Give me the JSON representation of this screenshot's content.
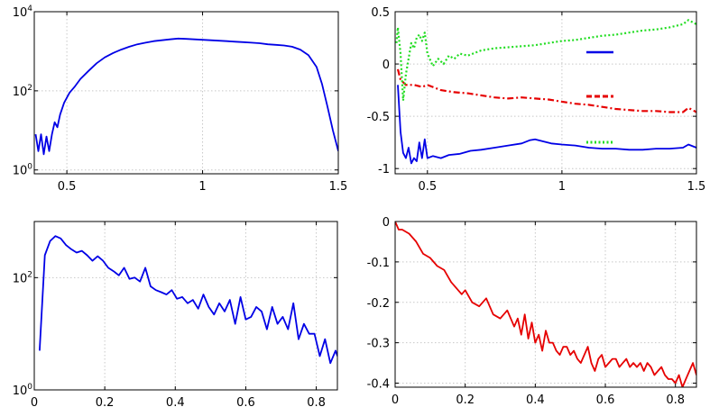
{
  "chart_data": [
    {
      "type": "line",
      "yscale": "log",
      "xlim": [
        0.38,
        1.5
      ],
      "ylim": [
        0.8,
        10000
      ],
      "xticks": [
        0.5,
        1,
        1.5
      ],
      "xticklabels": [
        "0.5",
        "1",
        "1.5"
      ],
      "yticks": [
        1,
        100,
        10000
      ],
      "yticklabels": [
        {
          "base": "10",
          "exp": "0"
        },
        {
          "base": "10",
          "exp": "2"
        },
        {
          "base": "10",
          "exp": "4"
        }
      ],
      "series": [
        {
          "color": "#0000e6",
          "style": "solid",
          "x": [
            0.385,
            0.395,
            0.405,
            0.415,
            0.425,
            0.435,
            0.445,
            0.455,
            0.465,
            0.475,
            0.49,
            0.51,
            0.53,
            0.55,
            0.58,
            0.61,
            0.64,
            0.67,
            0.7,
            0.73,
            0.76,
            0.79,
            0.82,
            0.85,
            0.88,
            0.91,
            0.94,
            0.97,
            1.0,
            1.03,
            1.06,
            1.09,
            1.12,
            1.15,
            1.18,
            1.21,
            1.24,
            1.27,
            1.3,
            1.33,
            1.36,
            1.39,
            1.42,
            1.44,
            1.46,
            1.48,
            1.5
          ],
          "y": [
            8,
            3,
            8,
            2.5,
            7,
            3,
            8,
            16,
            12,
            25,
            50,
            90,
            130,
            200,
            320,
            500,
            700,
            900,
            1100,
            1300,
            1500,
            1650,
            1800,
            1900,
            2000,
            2100,
            2050,
            2000,
            1950,
            1900,
            1850,
            1800,
            1750,
            1700,
            1650,
            1600,
            1500,
            1450,
            1400,
            1300,
            1100,
            800,
            400,
            150,
            40,
            10,
            3
          ]
        }
      ]
    },
    {
      "type": "line",
      "xlim": [
        0.38,
        1.5
      ],
      "ylim": [
        -1.05,
        0.5
      ],
      "xticks": [
        0.5,
        1,
        1.5
      ],
      "xticklabels": [
        "0.5",
        "1",
        "1.5"
      ],
      "yticks": [
        -1,
        -0.5,
        0,
        0.5
      ],
      "yticklabels": [
        "-1",
        "-0.5",
        "0",
        "0.5"
      ],
      "legend": "right",
      "series": [
        {
          "color": "#0000e6",
          "style": "solid",
          "x": [
            0.39,
            0.4,
            0.41,
            0.42,
            0.43,
            0.44,
            0.45,
            0.46,
            0.47,
            0.48,
            0.49,
            0.5,
            0.52,
            0.55,
            0.58,
            0.62,
            0.66,
            0.7,
            0.75,
            0.8,
            0.85,
            0.88,
            0.9,
            0.93,
            0.96,
            1.0,
            1.05,
            1.1,
            1.15,
            1.2,
            1.25,
            1.3,
            1.35,
            1.4,
            1.45,
            1.47,
            1.5
          ],
          "y": [
            -0.2,
            -0.65,
            -0.85,
            -0.9,
            -0.8,
            -0.95,
            -0.9,
            -0.93,
            -0.75,
            -0.9,
            -0.72,
            -0.9,
            -0.88,
            -0.9,
            -0.87,
            -0.86,
            -0.83,
            -0.82,
            -0.8,
            -0.78,
            -0.76,
            -0.73,
            -0.72,
            -0.74,
            -0.76,
            -0.77,
            -0.78,
            -0.8,
            -0.81,
            -0.81,
            -0.82,
            -0.82,
            -0.81,
            -0.81,
            -0.8,
            -0.77,
            -0.8
          ]
        },
        {
          "color": "#e60000",
          "style": "dashdot",
          "x": [
            0.39,
            0.4,
            0.42,
            0.45,
            0.48,
            0.5,
            0.55,
            0.6,
            0.65,
            0.7,
            0.75,
            0.8,
            0.85,
            0.9,
            0.95,
            1.0,
            1.05,
            1.1,
            1.15,
            1.2,
            1.25,
            1.3,
            1.35,
            1.4,
            1.45,
            1.47,
            1.5
          ],
          "y": [
            -0.05,
            -0.15,
            -0.2,
            -0.2,
            -0.22,
            -0.2,
            -0.25,
            -0.27,
            -0.28,
            -0.3,
            -0.32,
            -0.33,
            -0.32,
            -0.33,
            -0.34,
            -0.36,
            -0.38,
            -0.39,
            -0.41,
            -0.43,
            -0.44,
            -0.45,
            -0.45,
            -0.46,
            -0.46,
            -0.42,
            -0.46
          ]
        },
        {
          "color": "#22dd22",
          "style": "dotted",
          "x": [
            0.385,
            0.39,
            0.4,
            0.41,
            0.42,
            0.43,
            0.44,
            0.45,
            0.46,
            0.47,
            0.48,
            0.49,
            0.5,
            0.52,
            0.54,
            0.56,
            0.58,
            0.6,
            0.62,
            0.65,
            0.7,
            0.75,
            0.8,
            0.85,
            0.9,
            0.95,
            1.0,
            1.05,
            1.1,
            1.15,
            1.2,
            1.25,
            1.3,
            1.35,
            1.4,
            1.45,
            1.47,
            1.5
          ],
          "y": [
            0.2,
            0.35,
            0.1,
            -0.35,
            -0.1,
            0.05,
            0.2,
            0.15,
            0.25,
            0.28,
            0.22,
            0.3,
            0.1,
            -0.02,
            0.05,
            0.0,
            0.08,
            0.05,
            0.1,
            0.08,
            0.13,
            0.15,
            0.16,
            0.17,
            0.18,
            0.2,
            0.22,
            0.23,
            0.25,
            0.27,
            0.28,
            0.3,
            0.32,
            0.33,
            0.35,
            0.38,
            0.42,
            0.38
          ]
        }
      ]
    },
    {
      "type": "line",
      "yscale": "log",
      "xlim": [
        0,
        0.86
      ],
      "ylim": [
        1,
        1000
      ],
      "xticks": [
        0,
        0.2,
        0.4,
        0.6,
        0.8
      ],
      "xticklabels": [
        "0",
        "0.2",
        "0.4",
        "0.6",
        "0.8"
      ],
      "yticks": [
        1,
        100
      ],
      "yticklabels": [
        {
          "base": "10",
          "exp": "0"
        },
        {
          "base": "10",
          "exp": "2"
        }
      ],
      "series": [
        {
          "color": "#0000e6",
          "style": "solid",
          "x": [
            0.015,
            0.03,
            0.045,
            0.06,
            0.075,
            0.09,
            0.105,
            0.12,
            0.135,
            0.15,
            0.165,
            0.18,
            0.195,
            0.21,
            0.225,
            0.24,
            0.255,
            0.27,
            0.285,
            0.3,
            0.315,
            0.33,
            0.345,
            0.36,
            0.375,
            0.39,
            0.405,
            0.42,
            0.435,
            0.45,
            0.465,
            0.48,
            0.495,
            0.51,
            0.525,
            0.54,
            0.555,
            0.57,
            0.585,
            0.6,
            0.615,
            0.63,
            0.645,
            0.66,
            0.675,
            0.69,
            0.705,
            0.72,
            0.735,
            0.75,
            0.765,
            0.78,
            0.795,
            0.81,
            0.825,
            0.84,
            0.855,
            0.86
          ],
          "y": [
            5,
            250,
            450,
            550,
            500,
            380,
            320,
            280,
            300,
            250,
            200,
            240,
            200,
            150,
            130,
            110,
            150,
            95,
            100,
            85,
            150,
            70,
            60,
            55,
            50,
            60,
            42,
            45,
            35,
            40,
            28,
            50,
            30,
            22,
            35,
            25,
            40,
            15,
            45,
            18,
            20,
            30,
            25,
            12,
            30,
            15,
            20,
            12,
            35,
            8,
            15,
            10,
            10,
            4,
            8,
            3,
            5,
            4
          ]
        }
      ]
    },
    {
      "type": "line",
      "xlim": [
        0,
        0.86
      ],
      "ylim": [
        -0.41,
        0
      ],
      "xticks": [
        0,
        0.2,
        0.4,
        0.6,
        0.8
      ],
      "xticklabels": [
        "0",
        "0.2",
        "0.4",
        "0.6",
        "0.8"
      ],
      "yticks": [
        -0.4,
        -0.3,
        -0.2,
        -0.1,
        0
      ],
      "yticklabels": [
        "-0.4",
        "-0.3",
        "-0.2",
        "-0.1",
        "0"
      ],
      "series": [
        {
          "color": "#e60000",
          "style": "solid",
          "x": [
            0,
            0.01,
            0.02,
            0.04,
            0.06,
            0.08,
            0.1,
            0.12,
            0.14,
            0.16,
            0.18,
            0.19,
            0.2,
            0.22,
            0.24,
            0.26,
            0.28,
            0.3,
            0.32,
            0.34,
            0.35,
            0.36,
            0.37,
            0.38,
            0.39,
            0.4,
            0.41,
            0.42,
            0.43,
            0.44,
            0.45,
            0.46,
            0.47,
            0.48,
            0.49,
            0.5,
            0.51,
            0.52,
            0.53,
            0.54,
            0.55,
            0.56,
            0.57,
            0.58,
            0.59,
            0.6,
            0.61,
            0.62,
            0.63,
            0.64,
            0.65,
            0.66,
            0.67,
            0.68,
            0.69,
            0.7,
            0.71,
            0.72,
            0.73,
            0.74,
            0.75,
            0.76,
            0.77,
            0.78,
            0.79,
            0.8,
            0.81,
            0.82,
            0.83,
            0.84,
            0.85,
            0.86
          ],
          "y": [
            0,
            -0.02,
            -0.02,
            -0.03,
            -0.05,
            -0.08,
            -0.09,
            -0.11,
            -0.12,
            -0.15,
            -0.17,
            -0.18,
            -0.17,
            -0.2,
            -0.21,
            -0.19,
            -0.23,
            -0.24,
            -0.22,
            -0.26,
            -0.24,
            -0.28,
            -0.23,
            -0.29,
            -0.25,
            -0.3,
            -0.28,
            -0.32,
            -0.27,
            -0.3,
            -0.3,
            -0.32,
            -0.33,
            -0.31,
            -0.31,
            -0.33,
            -0.32,
            -0.34,
            -0.35,
            -0.33,
            -0.31,
            -0.35,
            -0.37,
            -0.34,
            -0.33,
            -0.36,
            -0.35,
            -0.34,
            -0.34,
            -0.36,
            -0.35,
            -0.34,
            -0.36,
            -0.35,
            -0.36,
            -0.35,
            -0.37,
            -0.35,
            -0.36,
            -0.38,
            -0.37,
            -0.36,
            -0.38,
            -0.39,
            -0.39,
            -0.4,
            -0.38,
            -0.41,
            -0.39,
            -0.37,
            -0.35,
            -0.38
          ]
        }
      ]
    }
  ],
  "legend": [
    {
      "color": "#0000e6",
      "style": "solid"
    },
    {
      "color": "#e60000",
      "style": "dashed"
    },
    {
      "color": "#22dd22",
      "style": "dotted"
    }
  ]
}
